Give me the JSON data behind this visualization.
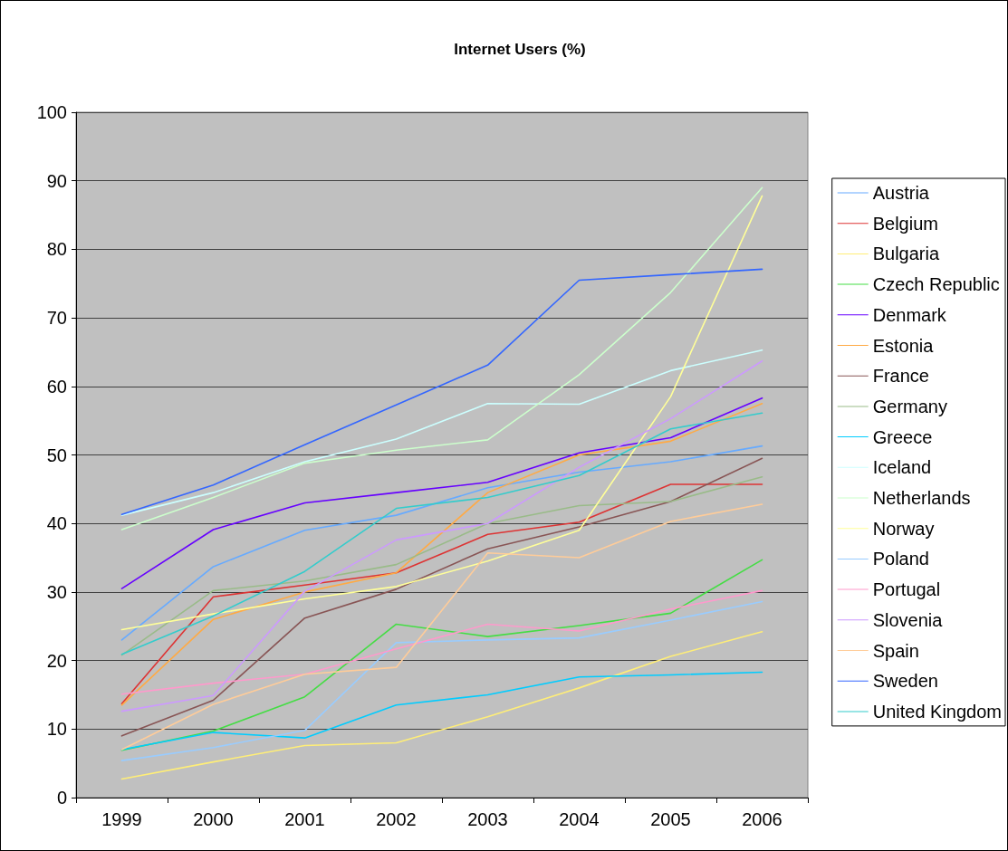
{
  "chart_data": {
    "type": "line",
    "title": "Internet Users (%)",
    "categories": [
      "1999",
      "2000",
      "2001",
      "2002",
      "2003",
      "2004",
      "2005",
      "2006"
    ],
    "ylim": [
      0,
      100
    ],
    "yticks": [
      0,
      10,
      20,
      30,
      40,
      50,
      60,
      70,
      80,
      90,
      100
    ],
    "grid": "y",
    "legend": "right",
    "marker": "none",
    "line_style": "solid",
    "series": [
      {
        "name": "Austria",
        "color": "#66aaff",
        "values": [
          23,
          33.7,
          39,
          41.2,
          45.2,
          47.5,
          49,
          51.3
        ]
      },
      {
        "name": "Belgium",
        "color": "#dd3333",
        "values": [
          13.7,
          29.3,
          31,
          32.8,
          38.4,
          40.2,
          45.7,
          45.7
        ]
      },
      {
        "name": "Bulgaria",
        "color": "#ffee77",
        "values": [
          2.7,
          5.2,
          7.6,
          8,
          11.8,
          16,
          20.6,
          24.2
        ]
      },
      {
        "name": "Czech Republic",
        "color": "#44dd44",
        "values": [
          6.9,
          9.7,
          14.7,
          25.3,
          23.5,
          25.1,
          26.9,
          34.7
        ]
      },
      {
        "name": "Denmark",
        "color": "#6600ff",
        "values": [
          30.5,
          39.1,
          43,
          44.5,
          46,
          50.3,
          52.5,
          58.3
        ]
      },
      {
        "name": "Estonia",
        "color": "#ffaa44",
        "values": [
          13.5,
          26,
          30,
          32.8,
          44.5,
          50,
          52,
          57.5
        ]
      },
      {
        "name": "France",
        "color": "#885555",
        "values": [
          9,
          14.2,
          26.2,
          30.4,
          36.3,
          39.5,
          43.2,
          49.5
        ]
      },
      {
        "name": "Germany",
        "color": "#99bb88",
        "values": [
          20.8,
          30.2,
          31.6,
          34,
          40,
          42.6,
          43.2,
          46.8
        ]
      },
      {
        "name": "Greece",
        "color": "#00ccff",
        "values": [
          7,
          9.5,
          8.7,
          13.5,
          15,
          17.6,
          17.9,
          18.3
        ]
      },
      {
        "name": "Iceland",
        "color": "#ccffff",
        "values": [
          41.2,
          44.5,
          49,
          52.3,
          57.5,
          57.4,
          62.3,
          65.3
        ]
      },
      {
        "name": "Netherlands",
        "color": "#ccffcc",
        "values": [
          39.1,
          43.8,
          48.8,
          50.7,
          52.2,
          61.7,
          73.7,
          89
        ]
      },
      {
        "name": "Norway",
        "color": "#ffff99",
        "values": [
          24.5,
          26.8,
          29,
          30.8,
          34.5,
          39,
          58.5,
          87.8
        ]
      },
      {
        "name": "Poland",
        "color": "#99ccff",
        "values": [
          5.4,
          7.3,
          9.8,
          22.6,
          23,
          23.3,
          25.9,
          28.6
        ]
      },
      {
        "name": "Portugal",
        "color": "#ff99cc",
        "values": [
          15.1,
          16.7,
          18,
          21.7,
          25.3,
          24.3,
          27.5,
          30.2
        ]
      },
      {
        "name": "Slovenia",
        "color": "#cc99ff",
        "values": [
          12.6,
          14.9,
          30.1,
          37.6,
          40,
          48.2,
          55.3,
          63.7
        ]
      },
      {
        "name": "Spain",
        "color": "#ffcc99",
        "values": [
          7,
          13.6,
          18,
          19,
          35.7,
          35,
          40.3,
          42.8
        ]
      },
      {
        "name": "Sweden",
        "color": "#3366ff",
        "values": [
          41.3,
          45.6,
          51.5,
          57.3,
          63.1,
          75.5,
          76.3,
          77.1
        ]
      },
      {
        "name": "United Kingdom",
        "color": "#33cccc",
        "values": [
          20.9,
          26.5,
          33,
          42.2,
          43.8,
          47,
          53.8,
          56.1
        ]
      }
    ]
  }
}
